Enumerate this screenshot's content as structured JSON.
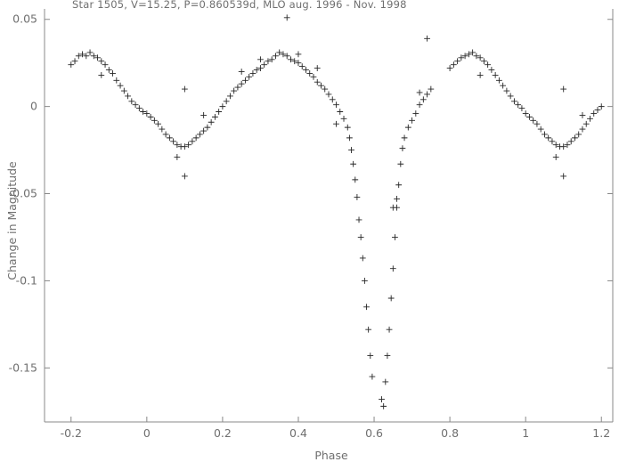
{
  "chart_data": {
    "type": "scatter",
    "title": "Star 1505, V=15.25, P=0.860539d, MLO aug. 1996 - Nov. 1998",
    "xlabel": "Phase",
    "ylabel": "Change in Magnitude",
    "xlim": [
      -0.27,
      1.23
    ],
    "ylim": [
      -0.181,
      0.056
    ],
    "marker": "plus",
    "grid": false,
    "x_ticks": [
      -0.2,
      0,
      0.2,
      0.4,
      0.6,
      0.8,
      1,
      1.2
    ],
    "x_tick_labels": [
      "-0.2",
      "0",
      "0.2",
      "0.4",
      "0.6",
      "0.8",
      "1",
      "1.2"
    ],
    "y_ticks": [
      0.05,
      0,
      -0.05,
      -0.1,
      -0.15
    ],
    "y_tick_labels": [
      "0.05",
      "0",
      "-0.05",
      "-0.1",
      "-0.15"
    ],
    "series": [
      {
        "points": [
          [
            -0.2,
            0.024
          ],
          [
            -0.19,
            0.026
          ],
          [
            -0.18,
            0.029
          ],
          [
            -0.17,
            0.03
          ],
          [
            -0.16,
            0.029
          ],
          [
            -0.15,
            0.031
          ],
          [
            -0.14,
            0.029
          ],
          [
            -0.13,
            0.028
          ],
          [
            -0.12,
            0.026
          ],
          [
            -0.11,
            0.024
          ],
          [
            -0.1,
            0.021
          ],
          [
            -0.09,
            0.019
          ],
          [
            -0.08,
            0.015
          ],
          [
            -0.07,
            0.012
          ],
          [
            -0.06,
            0.009
          ],
          [
            -0.05,
            0.006
          ],
          [
            -0.04,
            0.003
          ],
          [
            -0.03,
            0.001
          ],
          [
            -0.02,
            -0.001
          ],
          [
            -0.01,
            -0.003
          ],
          [
            0,
            -0.004
          ],
          [
            0.01,
            -0.006
          ],
          [
            0.02,
            -0.008
          ],
          [
            0.03,
            -0.01
          ],
          [
            0.04,
            -0.013
          ],
          [
            0.05,
            -0.016
          ],
          [
            0.06,
            -0.018
          ],
          [
            0.07,
            -0.02
          ],
          [
            0.08,
            -0.022
          ],
          [
            0.09,
            -0.023
          ],
          [
            0.1,
            -0.023
          ],
          [
            0.11,
            -0.022
          ],
          [
            0.12,
            -0.02
          ],
          [
            0.13,
            -0.018
          ],
          [
            0.14,
            -0.016
          ],
          [
            0.15,
            -0.014
          ],
          [
            0.16,
            -0.012
          ],
          [
            0.17,
            -0.009
          ],
          [
            0.18,
            -0.006
          ],
          [
            0.19,
            -0.003
          ],
          [
            0.2,
            0
          ],
          [
            0.21,
            0.003
          ],
          [
            0.22,
            0.006
          ],
          [
            0.23,
            0.009
          ],
          [
            0.24,
            0.011
          ],
          [
            0.25,
            0.013
          ],
          [
            0.26,
            0.015
          ],
          [
            0.27,
            0.017
          ],
          [
            0.28,
            0.019
          ],
          [
            0.29,
            0.021
          ],
          [
            0.3,
            0.022
          ],
          [
            0.31,
            0.024
          ],
          [
            0.32,
            0.026
          ],
          [
            0.33,
            0.027
          ],
          [
            0.34,
            0.029
          ],
          [
            0.35,
            0.031
          ],
          [
            0.36,
            0.03
          ],
          [
            0.37,
            0.029
          ],
          [
            0.38,
            0.027
          ],
          [
            0.39,
            0.026
          ],
          [
            0.4,
            0.025
          ],
          [
            0.41,
            0.023
          ],
          [
            0.42,
            0.021
          ],
          [
            0.43,
            0.019
          ],
          [
            0.44,
            0.017
          ],
          [
            0.45,
            0.014
          ],
          [
            0.46,
            0.012
          ],
          [
            0.47,
            0.01
          ],
          [
            0.48,
            0.007
          ],
          [
            0.49,
            0.004
          ],
          [
            0.5,
            0.001
          ],
          [
            0.51,
            -0.003
          ],
          [
            0.52,
            -0.007
          ],
          [
            0.53,
            -0.012
          ],
          [
            0.535,
            -0.018
          ],
          [
            0.54,
            -0.025
          ],
          [
            0.545,
            -0.033
          ],
          [
            0.55,
            -0.042
          ],
          [
            0.555,
            -0.052
          ],
          [
            0.56,
            -0.065
          ],
          [
            0.565,
            -0.075
          ],
          [
            0.57,
            -0.087
          ],
          [
            0.575,
            -0.1
          ],
          [
            0.58,
            -0.115
          ],
          [
            0.585,
            -0.128
          ],
          [
            0.59,
            -0.143
          ],
          [
            0.595,
            -0.155
          ],
          [
            0.62,
            -0.168
          ],
          [
            0.625,
            -0.172
          ],
          [
            0.63,
            -0.158
          ],
          [
            0.635,
            -0.143
          ],
          [
            0.64,
            -0.128
          ],
          [
            0.645,
            -0.11
          ],
          [
            0.65,
            -0.093
          ],
          [
            0.655,
            -0.075
          ],
          [
            0.66,
            -0.058
          ],
          [
            0.665,
            -0.045
          ],
          [
            0.67,
            -0.033
          ],
          [
            0.675,
            -0.024
          ],
          [
            0.68,
            -0.018
          ],
          [
            0.69,
            -0.012
          ],
          [
            0.7,
            -0.008
          ],
          [
            0.71,
            -0.004
          ],
          [
            0.72,
            0.001
          ],
          [
            0.73,
            0.004
          ],
          [
            0.74,
            0.007
          ],
          [
            0.75,
            0.01
          ],
          [
            0.8,
            0.022
          ],
          [
            0.81,
            0.024
          ],
          [
            0.82,
            0.026
          ],
          [
            0.83,
            0.028
          ],
          [
            0.84,
            0.029
          ],
          [
            0.85,
            0.03
          ],
          [
            0.86,
            0.031
          ],
          [
            0.87,
            0.029
          ],
          [
            0.88,
            0.028
          ],
          [
            0.89,
            0.026
          ],
          [
            0.9,
            0.024
          ],
          [
            0.91,
            0.021
          ],
          [
            0.92,
            0.018
          ],
          [
            0.93,
            0.015
          ],
          [
            0.94,
            0.012
          ],
          [
            0.95,
            0.009
          ],
          [
            0.96,
            0.006
          ],
          [
            0.97,
            0.003
          ],
          [
            0.98,
            0.001
          ],
          [
            0.99,
            -0.001
          ],
          [
            1,
            -0.004
          ],
          [
            1.01,
            -0.006
          ],
          [
            1.02,
            -0.008
          ],
          [
            1.03,
            -0.01
          ],
          [
            1.04,
            -0.013
          ],
          [
            1.05,
            -0.016
          ],
          [
            1.06,
            -0.018
          ],
          [
            1.07,
            -0.02
          ],
          [
            1.08,
            -0.022
          ],
          [
            1.09,
            -0.023
          ],
          [
            1.1,
            -0.023
          ],
          [
            1.11,
            -0.022
          ],
          [
            1.12,
            -0.02
          ],
          [
            1.13,
            -0.018
          ],
          [
            1.14,
            -0.016
          ],
          [
            1.15,
            -0.013
          ],
          [
            1.16,
            -0.01
          ],
          [
            1.17,
            -0.007
          ],
          [
            1.18,
            -0.004
          ],
          [
            1.19,
            -0.002
          ],
          [
            1.2,
            0
          ],
          [
            0.37,
            0.051
          ],
          [
            0.74,
            0.039
          ],
          [
            0.1,
            -0.04
          ],
          [
            1.1,
            -0.04
          ],
          [
            0.1,
            0.01
          ],
          [
            1.1,
            0.01
          ],
          [
            0.4,
            0.03
          ],
          [
            0.08,
            -0.029
          ],
          [
            1.08,
            -0.029
          ],
          [
            0.3,
            0.027
          ],
          [
            0.15,
            -0.005
          ],
          [
            1.15,
            -0.005
          ],
          [
            -0.12,
            0.018
          ],
          [
            0.88,
            0.018
          ],
          [
            0.25,
            0.02
          ],
          [
            0.45,
            0.022
          ],
          [
            0.5,
            -0.01
          ],
          [
            0.72,
            0.008
          ],
          [
            0.65,
            -0.058
          ],
          [
            0.66,
            -0.053
          ]
        ]
      }
    ]
  }
}
